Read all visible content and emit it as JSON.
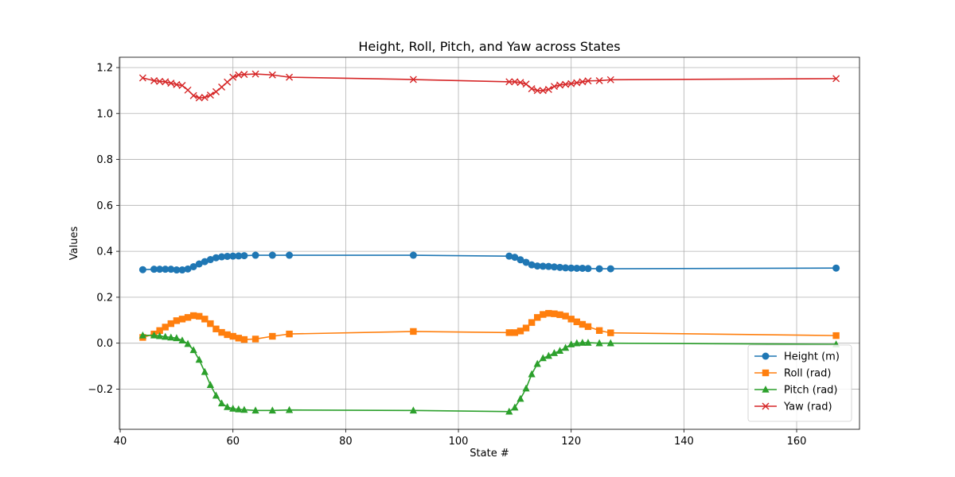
{
  "chart_data": {
    "type": "line",
    "title": "Height, Roll, Pitch, and Yaw across States",
    "xlabel": "State #",
    "ylabel": "Values",
    "xlim": [
      39.85,
      171.15
    ],
    "ylim": [
      -0.375,
      1.245
    ],
    "xticks": [
      40,
      60,
      80,
      100,
      120,
      140,
      160
    ],
    "xtick_labels": [
      "40",
      "60",
      "80",
      "100",
      "120",
      "140",
      "160"
    ],
    "yticks": [
      -0.2,
      0.0,
      0.2,
      0.4,
      0.6,
      0.8,
      1.0,
      1.2
    ],
    "ytick_labels": [
      "−0.2",
      "0.0",
      "0.2",
      "0.4",
      "0.6",
      "0.8",
      "1.0",
      "1.2"
    ],
    "grid": true,
    "legend_position": "lower-right",
    "x": [
      44,
      46,
      47,
      48,
      49,
      50,
      51,
      52,
      53,
      54,
      55,
      56,
      57,
      58,
      59,
      60,
      61,
      62,
      64,
      67,
      70,
      92,
      109,
      110,
      111,
      112,
      113,
      114,
      115,
      116,
      117,
      118,
      119,
      120,
      121,
      122,
      123,
      125,
      127,
      167
    ],
    "series": [
      {
        "name": "Height (m)",
        "color": "#1f77b4",
        "marker": "circle",
        "values": [
          0.32,
          0.322,
          0.322,
          0.322,
          0.322,
          0.319,
          0.319,
          0.323,
          0.333,
          0.345,
          0.355,
          0.364,
          0.372,
          0.376,
          0.378,
          0.379,
          0.38,
          0.381,
          0.383,
          0.383,
          0.383,
          0.383,
          0.379,
          0.374,
          0.363,
          0.352,
          0.341,
          0.336,
          0.335,
          0.334,
          0.332,
          0.33,
          0.328,
          0.327,
          0.326,
          0.326,
          0.325,
          0.324,
          0.324,
          0.327
        ]
      },
      {
        "name": "Roll (rad)",
        "color": "#ff7f0e",
        "marker": "square",
        "values": [
          0.025,
          0.04,
          0.055,
          0.07,
          0.085,
          0.098,
          0.105,
          0.112,
          0.12,
          0.117,
          0.105,
          0.085,
          0.062,
          0.047,
          0.037,
          0.03,
          0.022,
          0.016,
          0.018,
          0.03,
          0.04,
          0.051,
          0.046,
          0.046,
          0.053,
          0.066,
          0.09,
          0.112,
          0.125,
          0.13,
          0.128,
          0.124,
          0.118,
          0.105,
          0.093,
          0.082,
          0.072,
          0.055,
          0.045,
          0.033
        ]
      },
      {
        "name": "Pitch (rad)",
        "color": "#2ca02c",
        "marker": "triangle",
        "values": [
          0.034,
          0.034,
          0.031,
          0.028,
          0.025,
          0.022,
          0.012,
          -0.003,
          -0.03,
          -0.072,
          -0.125,
          -0.182,
          -0.228,
          -0.262,
          -0.278,
          -0.285,
          -0.288,
          -0.29,
          -0.293,
          -0.293,
          -0.291,
          -0.293,
          -0.298,
          -0.28,
          -0.242,
          -0.197,
          -0.135,
          -0.09,
          -0.065,
          -0.055,
          -0.043,
          -0.033,
          -0.02,
          -0.005,
          0.0,
          0.002,
          0.002,
          0.0,
          0.0,
          -0.005
        ]
      },
      {
        "name": "Yaw (rad)",
        "color": "#d62728",
        "marker": "x",
        "values": [
          1.155,
          1.143,
          1.14,
          1.138,
          1.132,
          1.126,
          1.122,
          1.102,
          1.078,
          1.068,
          1.07,
          1.08,
          1.095,
          1.115,
          1.137,
          1.158,
          1.168,
          1.17,
          1.172,
          1.168,
          1.158,
          1.148,
          1.138,
          1.138,
          1.135,
          1.128,
          1.108,
          1.1,
          1.1,
          1.105,
          1.118,
          1.124,
          1.127,
          1.13,
          1.134,
          1.138,
          1.142,
          1.143,
          1.147,
          1.152
        ]
      }
    ]
  }
}
